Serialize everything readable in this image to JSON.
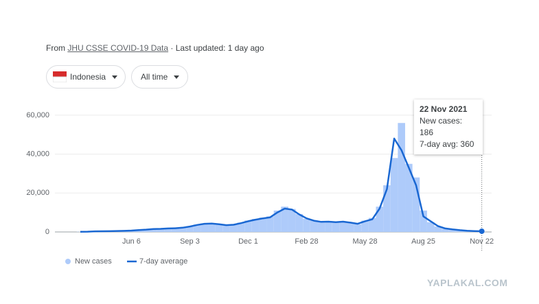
{
  "header": {
    "from": "From",
    "source": "JHU CSSE COVID-19 Data",
    "updated": "· Last updated: 1 day ago"
  },
  "controls": {
    "country": "Indonesia",
    "range": "All time"
  },
  "watermark": "YAPLAKAL.COM",
  "chart_data": {
    "type": "bar",
    "categories": [
      null,
      null,
      null,
      null,
      null,
      null,
      null,
      "Jun 6",
      null,
      null,
      null,
      null,
      null,
      null,
      null,
      "Sep 3",
      null,
      null,
      null,
      null,
      null,
      null,
      null,
      "Dec 1",
      null,
      null,
      null,
      null,
      null,
      null,
      null,
      "Feb 28",
      null,
      null,
      null,
      null,
      null,
      null,
      null,
      "May 28",
      null,
      null,
      null,
      null,
      null,
      null,
      null,
      "Aug 25",
      null,
      null,
      null,
      null,
      null,
      null,
      null,
      "Nov 22"
    ],
    "series": [
      {
        "name": "New cases",
        "type": "bar",
        "color": "#aecbfa",
        "values": [
          120,
          180,
          330,
          390,
          420,
          560,
          600,
          750,
          1100,
          1250,
          1600,
          1700,
          1900,
          2000,
          2300,
          3000,
          3800,
          4400,
          4200,
          3900,
          3400,
          3900,
          4800,
          5900,
          6700,
          7400,
          8000,
          11000,
          13000,
          11800,
          9200,
          6800,
          6000,
          5400,
          5600,
          5100,
          5500,
          4700,
          4000,
          5800,
          7200,
          13000,
          24000,
          38000,
          56000,
          35000,
          28000,
          11000,
          5000,
          2800,
          1700,
          1200,
          850,
          600,
          420,
          186
        ]
      },
      {
        "name": "7-day average",
        "type": "line",
        "color": "#1967d2",
        "values": [
          100,
          150,
          300,
          350,
          400,
          500,
          550,
          700,
          1000,
          1200,
          1500,
          1600,
          1800,
          1900,
          2200,
          2800,
          3600,
          4200,
          4300,
          4000,
          3500,
          3700,
          4500,
          5500,
          6300,
          7000,
          7500,
          10000,
          12000,
          11500,
          9000,
          7000,
          5800,
          5200,
          5300,
          5000,
          5300,
          4800,
          4200,
          5500,
          6500,
          12000,
          22000,
          48000,
          42000,
          33000,
          24000,
          8000,
          5500,
          3000,
          1800,
          1300,
          900,
          650,
          450,
          360
        ]
      }
    ],
    "ylim": [
      0,
      65000
    ],
    "yticks": [
      0,
      {
        "value": 20000,
        "label": "20,000"
      },
      {
        "value": 40000,
        "label": "40,000"
      },
      {
        "value": 60000,
        "label": "60,000"
      }
    ],
    "grid": true,
    "legend": "bottom-left",
    "tooltip": {
      "date": "22 Nov 2021",
      "new_cases_label": "New cases:",
      "avg_label": "7-day avg:"
    }
  }
}
